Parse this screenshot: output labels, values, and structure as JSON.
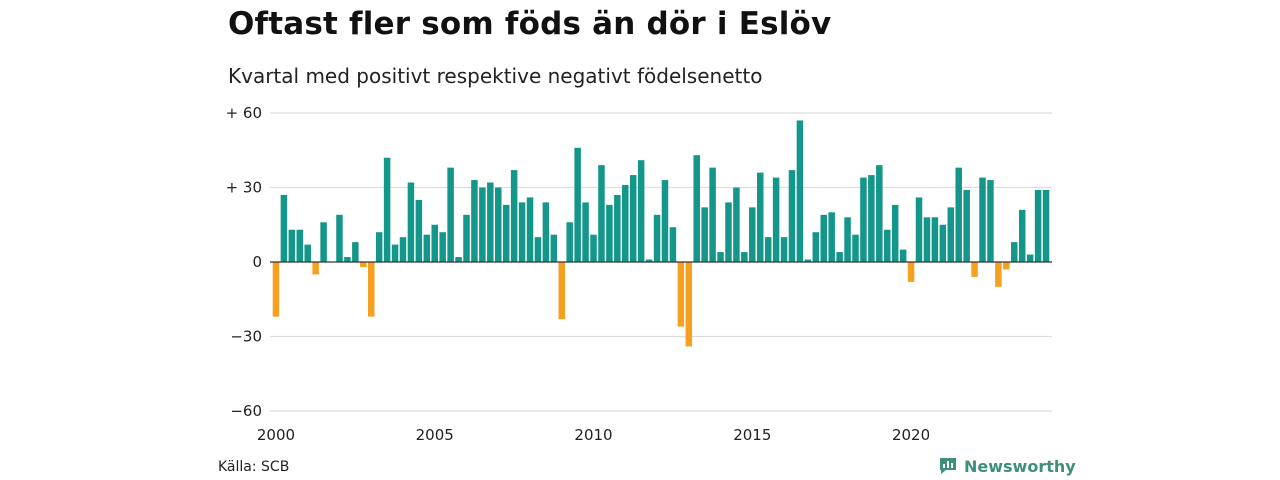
{
  "title": "Oftast fler som föds än dör i Eslöv",
  "subtitle": "Kvartal med positivt respektive negativt födelsenetto",
  "source": "Källa: SCB",
  "brand": {
    "name": "Newsworthy",
    "icon": "newsworthy-logo-icon",
    "color": "#3f8f7f"
  },
  "colors": {
    "positive": "#14978a",
    "negative": "#f5a01e",
    "grid": "#dddddd",
    "zero_line": "#333333"
  },
  "chart_data": {
    "type": "bar",
    "title": "Oftast fler som föds än dör i Eslöv",
    "subtitle": "Kvartal med positivt respektive negativt födelsenetto",
    "xlabel": "",
    "ylabel": "",
    "x_start_year": 2000,
    "ylim": [
      -60,
      60
    ],
    "y_ticks": [
      60,
      30,
      0,
      -30,
      -60
    ],
    "y_tick_labels": [
      "+ 60",
      "+ 30",
      "0",
      "−30",
      "−60"
    ],
    "x_ticks": [
      2000,
      2005,
      2010,
      2015,
      2020
    ],
    "x_tick_labels": [
      "2000",
      "2005",
      "2010",
      "2015",
      "2020"
    ],
    "grid": true,
    "values": [
      -22,
      27,
      13,
      13,
      7,
      -5,
      16,
      0,
      19,
      2,
      8,
      -2,
      -22,
      12,
      42,
      7,
      10,
      32,
      25,
      11,
      15,
      12,
      38,
      2,
      19,
      33,
      30,
      32,
      30,
      23,
      37,
      24,
      26,
      10,
      24,
      11,
      -23,
      16,
      46,
      24,
      11,
      39,
      23,
      27,
      31,
      35,
      41,
      1,
      19,
      33,
      14,
      -26,
      -34,
      43,
      22,
      38,
      4,
      24,
      30,
      4,
      22,
      36,
      10,
      34,
      10,
      37,
      57,
      1,
      12,
      19,
      20,
      4,
      18,
      11,
      34,
      35,
      39,
      13,
      23,
      5,
      -8,
      26,
      18,
      18,
      15,
      22,
      38,
      29,
      -6,
      34,
      33,
      -10,
      -3,
      8,
      21,
      3,
      29,
      29
    ]
  }
}
